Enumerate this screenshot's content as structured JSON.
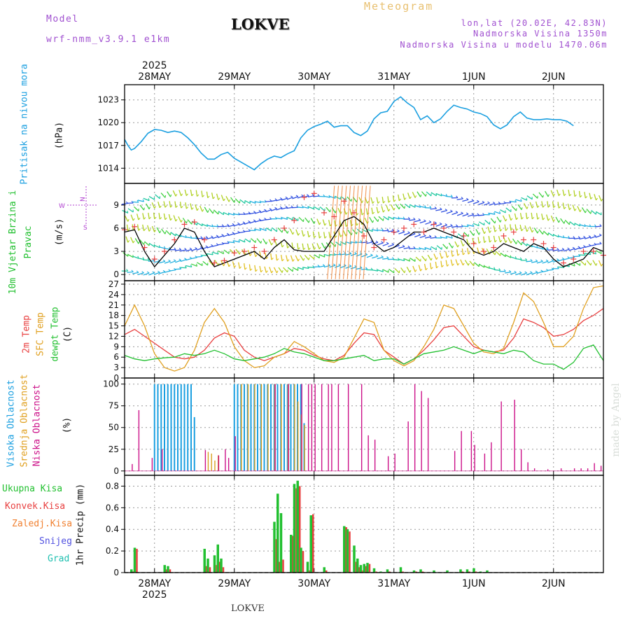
{
  "header": {
    "model_label": "Model",
    "model_name": "wrf-nmm_v3.9.1 e1km",
    "station": "LOKVE",
    "app_title": "Meteogram",
    "coords": "lon,lat (20.02E, 42.83N)",
    "elevation": "Nadmorska Visina 1350m",
    "model_elevation": "Nadmorska Visina u modelu 1470.06m",
    "watermark": "made by Angel",
    "footer_station": "LOKVE"
  },
  "time_axis": {
    "year": "2025",
    "days": [
      "28MAY",
      "29MAY",
      "30MAY",
      "31MAY",
      "1JUN",
      "2JUN"
    ],
    "hours_per_day": 24,
    "start_offset_hours": -9,
    "end_offset_hours": 135
  },
  "colors": {
    "pressure": "#1a9fe0",
    "temp2m": "#e84040",
    "sfc": "#e0a020",
    "dewpt": "#22c030",
    "high_cloud": "#1a9fe0",
    "mid_cloud": "#d8a020",
    "low_cloud": "#cc1088",
    "total_precip": "#22c030",
    "conv_precip": "#e84040",
    "frz_precip": "#f08030",
    "snow": "#5050e0",
    "graupel": "#20c0b0",
    "wind_magenta": "#b040d0"
  },
  "chart_data": [
    {
      "type": "line",
      "panel": "pressure",
      "ylabel": "Pritisak na nivou mora",
      "unit": "(hPa)",
      "ylim": [
        1012,
        1025
      ],
      "yticks": [
        1014,
        1017,
        1020,
        1023
      ],
      "x_hours": [
        -9,
        -8,
        -7,
        -6,
        -4,
        -2,
        0,
        2,
        4,
        6,
        8,
        10,
        12,
        14,
        16,
        18,
        20,
        22,
        24,
        26,
        28,
        30,
        32,
        34,
        36,
        38,
        40,
        42,
        44,
        46,
        48,
        50,
        52,
        54,
        56,
        58,
        60,
        62,
        64,
        66,
        68,
        70,
        72,
        74,
        76,
        78,
        80,
        82,
        84,
        86,
        88,
        90,
        92,
        94,
        96,
        98,
        100,
        102,
        104,
        106,
        108,
        110,
        112,
        114,
        116,
        118,
        120,
        122,
        124,
        126,
        128,
        130,
        132,
        134,
        135
      ],
      "series": [
        {
          "values": [
            1017.8,
            1017.0,
            1016.4,
            1016.6,
            1017.5,
            1018.6,
            1019.1,
            1019.0,
            1018.7,
            1018.9,
            1018.7,
            1018.0,
            1017.1,
            1016.0,
            1015.2,
            1015.2,
            1015.8,
            1016.1,
            1015.3,
            1014.8,
            1014.3,
            1013.8,
            1014.6,
            1015.2,
            1015.6,
            1015.4,
            1015.9,
            1016.3,
            1018.0,
            1019.0,
            1019.5,
            1019.8,
            1020.2,
            1019.4,
            1019.6,
            1019.6,
            1018.7,
            1018.3,
            1018.9,
            1020.5,
            1021.3,
            1021.5,
            1022.8,
            1023.4,
            1022.6,
            1022.0,
            1020.4,
            1020.9,
            1020.0,
            1020.5,
            1021.5,
            1022.3,
            1022.0,
            1021.8,
            1021.4,
            1021.2,
            1020.8,
            1019.7,
            1019.2,
            1019.7,
            1020.8,
            1021.4,
            1020.6,
            1020.4,
            1020.4,
            1020.5,
            1020.4,
            1020.4,
            1020.2,
            1019.6
          ]
        }
      ]
    },
    {
      "type": "line",
      "panel": "wind",
      "ylabel": "10m Vjetar Brzina i Pravac",
      "unit": "(m/s)",
      "ylim": [
        -0.8,
        11.8
      ],
      "yticks": [
        0,
        3,
        6,
        9
      ],
      "compass": [
        "N",
        "E",
        "S",
        "W"
      ],
      "x_hours": [
        -9,
        -6,
        -3,
        0,
        3,
        6,
        9,
        12,
        15,
        18,
        21,
        24,
        27,
        30,
        33,
        36,
        39,
        42,
        45,
        48,
        51,
        54,
        57,
        60,
        63,
        66,
        69,
        72,
        75,
        78,
        81,
        84,
        87,
        90,
        93,
        96,
        99,
        102,
        105,
        108,
        111,
        114,
        117,
        120,
        123,
        126,
        129,
        132,
        135
      ],
      "series": [
        {
          "values": [
            5.5,
            5.8,
            3.0,
            1.0,
            2.5,
            4.0,
            6.0,
            5.5,
            3.0,
            1.0,
            1.5,
            2.0,
            2.5,
            3.0,
            2.0,
            3.5,
            4.5,
            3.2,
            3.0,
            3.0,
            3.0,
            5.0,
            7.0,
            7.5,
            6.5,
            4.0,
            3.0,
            3.5,
            4.5,
            5.5,
            5.5,
            6.0,
            5.5,
            5.0,
            4.5,
            3.0,
            2.5,
            3.0,
            4.0,
            3.5,
            3.0,
            4.0,
            3.5,
            2.0,
            1.0,
            1.5,
            2.0,
            3.5,
            3.0
          ]
        },
        {
          "values": [
            5.8,
            6.2,
            3.5,
            2.0,
            3.0,
            4.5,
            6.5,
            6.8,
            4.5,
            1.5,
            1.8,
            2.8,
            3.0,
            3.5,
            3.0,
            4.5,
            6.0,
            7.0,
            10.0,
            10.5,
            8.0,
            7.5,
            9.5,
            8.0,
            5.0,
            3.5,
            4.5,
            5.5,
            6.0,
            6.5,
            5.5,
            6.5,
            6.0,
            5.5,
            5.0,
            4.0,
            3.0,
            3.5,
            5.0,
            5.5,
            4.5,
            4.5,
            4.0,
            3.5,
            1.5,
            2.0,
            3.0,
            3.0,
            2.5
          ]
        }
      ]
    },
    {
      "type": "line",
      "panel": "temperature",
      "ylabel": "2m Temp SFC Temp dewpt Temp",
      "unit": "(C)",
      "ylim": [
        0,
        28
      ],
      "yticks": [
        0,
        3,
        6,
        9,
        12,
        15,
        18,
        21,
        24,
        27
      ],
      "x_hours": [
        -9,
        -6,
        -3,
        0,
        3,
        6,
        9,
        12,
        15,
        18,
        21,
        24,
        27,
        30,
        33,
        36,
        39,
        42,
        45,
        48,
        51,
        54,
        57,
        60,
        63,
        66,
        69,
        72,
        75,
        78,
        81,
        84,
        87,
        90,
        93,
        96,
        99,
        102,
        105,
        108,
        111,
        114,
        117,
        120,
        123,
        126,
        129,
        132,
        135
      ],
      "series": [
        {
          "name": "2m Temp",
          "values": [
            12.5,
            14.0,
            12.0,
            10.0,
            8.0,
            6.0,
            5.5,
            6.0,
            8.0,
            11.5,
            13.0,
            12.0,
            8.0,
            6.0,
            5.0,
            6.0,
            7.0,
            8.5,
            8.0,
            6.5,
            5.5,
            5.0,
            6.5,
            10.0,
            13.0,
            12.5,
            8.0,
            6.0,
            4.0,
            5.5,
            8.0,
            11.0,
            14.5,
            15.0,
            12.0,
            9.0,
            8.0,
            7.5,
            8.0,
            11.5,
            17.0,
            16.0,
            14.5,
            12.0,
            12.5,
            14.0,
            16.5,
            18.0,
            20.0
          ]
        },
        {
          "name": "SFC Temp",
          "values": [
            15.0,
            21.0,
            15.0,
            7.0,
            3.0,
            2.0,
            3.0,
            8.0,
            16.0,
            20.0,
            16.0,
            9.0,
            5.0,
            3.0,
            3.5,
            6.0,
            7.0,
            10.5,
            9.0,
            7.0,
            5.0,
            4.5,
            6.0,
            11.5,
            17.0,
            16.0,
            8.0,
            5.0,
            3.5,
            5.0,
            9.0,
            14.0,
            21.0,
            20.0,
            15.0,
            10.0,
            7.5,
            7.0,
            8.5,
            16.0,
            24.5,
            22.0,
            16.0,
            9.0,
            9.0,
            12.0,
            20.0,
            26.0,
            26.5
          ]
        },
        {
          "name": "dewpt Temp",
          "values": [
            6.5,
            5.5,
            5.0,
            5.5,
            5.8,
            6.0,
            7.0,
            6.5,
            7.0,
            8.0,
            7.0,
            5.5,
            5.0,
            5.5,
            6.0,
            7.0,
            8.5,
            7.5,
            7.0,
            6.0,
            5.0,
            5.0,
            5.5,
            6.0,
            6.5,
            5.0,
            5.5,
            5.5,
            4.0,
            5.5,
            7.0,
            7.5,
            8.0,
            9.0,
            8.0,
            7.0,
            8.0,
            7.5,
            7.0,
            8.0,
            7.5,
            5.0,
            4.0,
            4.0,
            2.5,
            4.5,
            8.5,
            9.5,
            5.0
          ]
        }
      ]
    },
    {
      "type": "bar",
      "panel": "cloud",
      "ylabel": "Visoka Oblacnost Srednja Oblacnost Niska Oblacnost",
      "unit": "(%)",
      "ylim": [
        -5,
        107
      ],
      "yticks": [
        0,
        25,
        50,
        75,
        100
      ],
      "series": [
        {
          "name": "Visoka Oblacnost",
          "x_hours": [
            0,
            1,
            2,
            3,
            4,
            5,
            6,
            7,
            8,
            9,
            10,
            11,
            12,
            24,
            25,
            26,
            27,
            28,
            29,
            30,
            31,
            32,
            33,
            34,
            35,
            36,
            37,
            38,
            39,
            40,
            41,
            42,
            43,
            44,
            45
          ],
          "values": [
            100,
            100,
            100,
            100,
            100,
            100,
            100,
            100,
            100,
            100,
            100,
            100,
            62,
            100,
            100,
            100,
            100,
            100,
            100,
            100,
            100,
            100,
            100,
            100,
            100,
            100,
            100,
            100,
            100,
            100,
            100,
            100,
            100,
            100,
            55
          ]
        },
        {
          "name": "Srednja Oblacnost",
          "x_hours": [
            16,
            17,
            18,
            19,
            26,
            28,
            30,
            32,
            34,
            36,
            38,
            40,
            42,
            43,
            44,
            45
          ],
          "values": [
            22,
            20,
            12,
            18,
            100,
            100,
            100,
            100,
            100,
            100,
            100,
            100,
            100,
            80,
            65,
            53
          ]
        },
        {
          "name": "Niska Oblacnost",
          "x_hours": [
            -7,
            -5,
            -1,
            2,
            15,
            19,
            21,
            22,
            24,
            36,
            40,
            44,
            46,
            47,
            48,
            50,
            52,
            53,
            55,
            58,
            62,
            64,
            66,
            70,
            72,
            76,
            78,
            80,
            82,
            90,
            92,
            95,
            96,
            99,
            101,
            104,
            108,
            110,
            112,
            114,
            118,
            122,
            126,
            128,
            130,
            132,
            134
          ],
          "values": [
            8,
            70,
            15,
            25,
            24,
            18,
            25,
            15,
            40,
            100,
            100,
            100,
            100,
            100,
            100,
            100,
            100,
            100,
            100,
            100,
            100,
            41,
            36,
            17,
            20,
            57,
            100,
            92,
            84,
            23,
            46,
            46,
            30,
            20,
            33,
            80,
            82,
            25,
            10,
            3,
            2,
            3,
            3,
            3,
            3,
            9,
            6
          ]
        }
      ]
    },
    {
      "type": "bar",
      "panel": "precipitation",
      "ylabel": "1hr Precip (mm)",
      "legend": [
        "Ukupna Kisa",
        "Konvek.Kisa",
        "Zaledj.Kisa",
        "Snijeg",
        "Grad"
      ],
      "ylim": [
        0,
        0.9
      ],
      "yticks": [
        0,
        0.2,
        0.4,
        0.6,
        0.8
      ],
      "x_hours": [
        -7,
        -6,
        3,
        4,
        15,
        16,
        18,
        19,
        20,
        36,
        37,
        38,
        41,
        42,
        43,
        44,
        46,
        47,
        51,
        57,
        58,
        60,
        61,
        62,
        63,
        64,
        66,
        68,
        70,
        74,
        78,
        80,
        84,
        88,
        92,
        94,
        96,
        98,
        100
      ],
      "series": [
        {
          "name": "Ukupna Kisa",
          "values": [
            0.03,
            0.23,
            0.07,
            0.06,
            0.22,
            0.13,
            0.16,
            0.26,
            0.13,
            0.47,
            0.73,
            0.55,
            0.35,
            0.82,
            0.85,
            0.23,
            0.1,
            0.53,
            0.05,
            0.43,
            0.4,
            0.25,
            0.13,
            0.07,
            0.08,
            0.09,
            0.04,
            0.01,
            0.03,
            0.05,
            0.02,
            0.03,
            0.02,
            0.02,
            0.03,
            0.03,
            0.04,
            0.01,
            0.02
          ]
        },
        {
          "name": "Konvek.Kisa",
          "values": [
            0.01,
            0.22,
            0.03,
            0.03,
            0.06,
            0.05,
            0.07,
            0.1,
            0.05,
            0.31,
            0.1,
            0.12,
            0.34,
            0.78,
            0.8,
            0.2,
            0.02,
            0.54,
            0.02,
            0.42,
            0.38,
            0.1,
            0.05,
            0.02,
            0.06,
            0.08,
            0.01,
            0.0,
            0.01,
            0.01,
            0.01,
            0.01,
            0.0,
            0.0,
            0.01,
            0.01,
            0.01,
            0.0,
            0.0
          ]
        }
      ]
    }
  ]
}
